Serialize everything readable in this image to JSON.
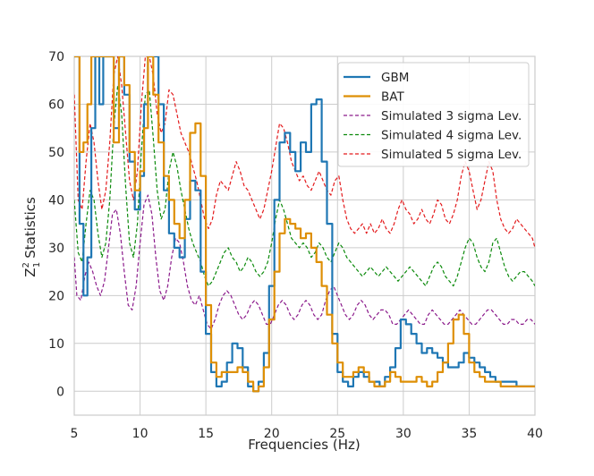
{
  "chart_data": {
    "type": "line",
    "title": "",
    "xlabel": "Frequencies (Hz)",
    "ylabel": "Statistics",
    "ylabel_symbol": "Z",
    "ylabel_sup": "2",
    "ylabel_sub": "1",
    "xlim": [
      5,
      40
    ],
    "ylim": [
      -5,
      70
    ],
    "xticks": [
      5,
      10,
      15,
      20,
      25,
      30,
      35,
      40
    ],
    "yticks": [
      0,
      10,
      20,
      30,
      40,
      50,
      60,
      70
    ],
    "grid": true,
    "legend_position": "top-right",
    "series": [
      {
        "name": "GBM",
        "color": "#1f77b4",
        "style": "step",
        "width": 2.2,
        "x": [
          5.0,
          5.4,
          5.7,
          6.0,
          6.3,
          6.6,
          6.9,
          7.2,
          7.6,
          8.0,
          8.4,
          8.8,
          9.2,
          9.6,
          10.0,
          10.3,
          10.6,
          11.0,
          11.4,
          11.8,
          12.2,
          12.6,
          13.0,
          13.4,
          13.8,
          14.2,
          14.6,
          15.0,
          15.4,
          15.8,
          16.2,
          16.6,
          17.0,
          17.4,
          17.8,
          18.2,
          18.6,
          19.0,
          19.4,
          19.8,
          20.2,
          20.6,
          21.0,
          21.4,
          21.8,
          22.2,
          22.6,
          23.0,
          23.4,
          23.8,
          24.2,
          24.6,
          25.0,
          25.4,
          25.8,
          26.2,
          26.6,
          27.0,
          27.4,
          27.8,
          28.2,
          28.6,
          29.0,
          29.4,
          29.8,
          30.2,
          30.6,
          31.0,
          31.4,
          31.8,
          32.2,
          32.6,
          33.0,
          33.4,
          33.8,
          34.2,
          34.6,
          35.0,
          35.4,
          35.8,
          36.2,
          36.6,
          37.0,
          37.4,
          37.8,
          38.2,
          38.6,
          39.0,
          39.4,
          39.8,
          40.0
        ],
        "y": [
          70,
          35,
          20,
          28,
          55,
          70,
          60,
          70,
          70,
          55,
          70,
          62,
          48,
          38,
          45,
          60,
          70,
          70,
          60,
          42,
          33,
          30,
          28,
          36,
          44,
          42,
          25,
          12,
          4,
          1,
          2,
          6,
          10,
          9,
          5,
          1,
          0,
          2,
          8,
          22,
          40,
          52,
          54,
          50,
          46,
          52,
          50,
          60,
          61,
          48,
          35,
          12,
          4,
          2,
          1,
          3,
          4,
          3,
          2,
          2,
          1,
          3,
          5,
          9,
          15,
          14,
          12,
          10,
          8,
          9,
          8,
          7,
          6,
          5,
          5,
          6,
          8,
          7,
          6,
          5,
          4,
          3,
          2,
          2,
          2,
          2,
          1,
          1,
          1,
          1,
          1
        ]
      },
      {
        "name": "BAT",
        "color": "#de8f05",
        "style": "step",
        "width": 2.2,
        "x": [
          5.0,
          5.4,
          5.7,
          6.0,
          6.3,
          6.6,
          6.9,
          7.2,
          7.6,
          8.0,
          8.4,
          8.8,
          9.2,
          9.6,
          10.0,
          10.3,
          10.6,
          11.0,
          11.4,
          11.8,
          12.2,
          12.6,
          13.0,
          13.4,
          13.8,
          14.2,
          14.6,
          15.0,
          15.4,
          15.8,
          16.2,
          16.6,
          17.0,
          17.4,
          17.8,
          18.2,
          18.6,
          19.0,
          19.4,
          19.8,
          20.2,
          20.6,
          21.0,
          21.4,
          21.8,
          22.2,
          22.6,
          23.0,
          23.4,
          23.8,
          24.2,
          24.6,
          25.0,
          25.4,
          25.8,
          26.2,
          26.6,
          27.0,
          27.4,
          27.8,
          28.2,
          28.6,
          29.0,
          29.4,
          29.8,
          30.2,
          30.6,
          31.0,
          31.4,
          31.8,
          32.2,
          32.6,
          33.0,
          33.4,
          33.8,
          34.2,
          34.6,
          35.0,
          35.4,
          35.8,
          36.2,
          36.6,
          37.0,
          37.4,
          37.8,
          38.2,
          38.6,
          39.0,
          39.4,
          39.8,
          40.0
        ],
        "y": [
          70,
          50,
          52,
          60,
          70,
          70,
          70,
          70,
          70,
          52,
          70,
          64,
          50,
          42,
          46,
          55,
          70,
          62,
          52,
          45,
          40,
          35,
          32,
          40,
          54,
          56,
          45,
          18,
          6,
          3,
          4,
          4,
          4,
          5,
          4,
          2,
          0,
          1,
          5,
          15,
          25,
          33,
          36,
          35,
          34,
          32,
          33,
          30,
          27,
          22,
          16,
          10,
          6,
          3,
          3,
          4,
          5,
          4,
          2,
          1,
          1,
          2,
          4,
          3,
          2,
          2,
          2,
          3,
          2,
          1,
          2,
          4,
          6,
          10,
          15,
          16,
          12,
          6,
          4,
          3,
          2,
          2,
          2,
          1,
          1,
          1,
          1,
          1,
          1,
          1,
          1
        ]
      },
      {
        "name": "Simulated 3 sigma Lev.",
        "color": "#8b1a8b",
        "style": "dashed",
        "width": 1.2,
        "x": [
          5.0,
          5.2,
          5.5,
          5.8,
          6.1,
          6.4,
          6.7,
          7.0,
          7.3,
          7.6,
          7.9,
          8.2,
          8.5,
          8.8,
          9.1,
          9.4,
          9.7,
          10.0,
          10.3,
          10.6,
          10.9,
          11.2,
          11.5,
          11.8,
          12.1,
          12.4,
          12.7,
          13.0,
          13.3,
          13.6,
          13.9,
          14.2,
          14.5,
          14.8,
          15.1,
          15.4,
          15.7,
          16.0,
          16.3,
          16.6,
          16.9,
          17.2,
          17.5,
          17.8,
          18.1,
          18.4,
          18.7,
          19.0,
          19.3,
          19.6,
          19.9,
          20.2,
          20.5,
          20.8,
          21.1,
          21.4,
          21.7,
          22.0,
          22.3,
          22.6,
          22.9,
          23.2,
          23.5,
          23.8,
          24.1,
          24.4,
          24.7,
          25.0,
          25.3,
          25.6,
          25.9,
          26.2,
          26.5,
          26.8,
          27.1,
          27.4,
          27.7,
          28.0,
          28.3,
          28.6,
          28.9,
          29.2,
          29.5,
          29.8,
          30.1,
          30.4,
          30.7,
          31.0,
          31.3,
          31.6,
          31.9,
          32.2,
          32.5,
          32.8,
          33.1,
          33.4,
          33.7,
          34.0,
          34.3,
          34.6,
          34.9,
          35.2,
          35.5,
          35.8,
          36.1,
          36.4,
          36.7,
          37.0,
          37.3,
          37.6,
          37.9,
          38.2,
          38.5,
          38.8,
          39.1,
          39.4,
          39.7,
          40.0
        ],
        "y": [
          28,
          20,
          19,
          24,
          27,
          25,
          22,
          20,
          23,
          30,
          37,
          38,
          33,
          25,
          18,
          17,
          22,
          31,
          39,
          41,
          37,
          28,
          21,
          19,
          22,
          28,
          32,
          31,
          27,
          22,
          19,
          18,
          20,
          17,
          14,
          13,
          15,
          18,
          20,
          21,
          20,
          18,
          16,
          15,
          16,
          18,
          19,
          18,
          16,
          14,
          14,
          16,
          18,
          19,
          18,
          16,
          15,
          16,
          18,
          19,
          18,
          16,
          15,
          16,
          19,
          21,
          22,
          20,
          18,
          16,
          15,
          16,
          18,
          19,
          18,
          16,
          15,
          16,
          17,
          17,
          16,
          14,
          14,
          15,
          16,
          17,
          16,
          15,
          14,
          14,
          16,
          17,
          16,
          15,
          14,
          14,
          15,
          16,
          17,
          16,
          15,
          14,
          14,
          15,
          16,
          17,
          17,
          16,
          15,
          14,
          14,
          15,
          15,
          14,
          14,
          15,
          15,
          14
        ],
        "wiggle": 0
      },
      {
        "name": "Simulated 4 sigma Lev.",
        "color": "#0b8a0b",
        "style": "dashed",
        "width": 1.2,
        "x": [
          5.0,
          5.3,
          5.6,
          5.9,
          6.2,
          6.5,
          6.8,
          7.1,
          7.4,
          7.7,
          8.0,
          8.3,
          8.6,
          8.9,
          9.2,
          9.5,
          9.8,
          10.1,
          10.4,
          10.7,
          11.0,
          11.3,
          11.6,
          11.9,
          12.2,
          12.5,
          12.8,
          13.1,
          13.4,
          13.7,
          14.0,
          14.3,
          14.6,
          14.9,
          15.2,
          15.5,
          15.8,
          16.1,
          16.4,
          16.7,
          17.0,
          17.3,
          17.6,
          17.9,
          18.2,
          18.5,
          18.8,
          19.1,
          19.4,
          19.7,
          20.0,
          20.3,
          20.6,
          20.9,
          21.2,
          21.5,
          21.8,
          22.1,
          22.4,
          22.7,
          23.0,
          23.3,
          23.6,
          23.9,
          24.2,
          24.5,
          24.8,
          25.1,
          25.4,
          25.7,
          26.0,
          26.3,
          26.6,
          26.9,
          27.2,
          27.5,
          27.8,
          28.1,
          28.4,
          28.7,
          29.0,
          29.3,
          29.6,
          29.9,
          30.2,
          30.5,
          30.8,
          31.1,
          31.4,
          31.7,
          32.0,
          32.3,
          32.6,
          32.9,
          33.2,
          33.5,
          33.8,
          34.1,
          34.4,
          34.7,
          35.0,
          35.3,
          35.6,
          35.9,
          36.2,
          36.5,
          36.8,
          37.1,
          37.4,
          37.7,
          38.0,
          38.3,
          38.6,
          38.9,
          39.2,
          39.5,
          39.8,
          40.0
        ],
        "y": [
          40,
          29,
          27,
          35,
          42,
          40,
          33,
          28,
          31,
          40,
          55,
          64,
          58,
          43,
          31,
          28,
          35,
          50,
          62,
          63,
          53,
          42,
          36,
          38,
          46,
          50,
          47,
          42,
          38,
          34,
          31,
          29,
          27,
          24,
          22,
          23,
          25,
          27,
          29,
          30,
          28,
          27,
          25,
          26,
          28,
          27,
          25,
          24,
          25,
          27,
          31,
          36,
          40,
          38,
          35,
          32,
          31,
          30,
          31,
          30,
          28,
          29,
          31,
          30,
          28,
          27,
          29,
          31,
          30,
          28,
          27,
          26,
          25,
          24,
          25,
          26,
          25,
          24,
          25,
          26,
          25,
          24,
          23,
          24,
          25,
          26,
          25,
          24,
          23,
          22,
          24,
          26,
          27,
          26,
          24,
          23,
          22,
          24,
          27,
          30,
          32,
          31,
          28,
          26,
          25,
          27,
          31,
          32,
          29,
          26,
          24,
          23,
          24,
          25,
          25,
          24,
          23,
          22
        ],
        "wiggle": 0
      },
      {
        "name": "Simulated 5 sigma Lev.",
        "color": "#e31a1c",
        "style": "dashed",
        "width": 1.2,
        "x": [
          5.0,
          5.3,
          5.6,
          5.9,
          6.2,
          6.5,
          6.8,
          7.1,
          7.4,
          7.7,
          8.0,
          8.3,
          8.6,
          8.9,
          9.2,
          9.5,
          9.8,
          10.1,
          10.4,
          10.7,
          11.0,
          11.3,
          11.6,
          11.9,
          12.2,
          12.5,
          12.8,
          13.1,
          13.4,
          13.7,
          14.0,
          14.3,
          14.6,
          14.9,
          15.2,
          15.5,
          15.8,
          16.1,
          16.4,
          16.7,
          17.0,
          17.3,
          17.6,
          17.9,
          18.2,
          18.5,
          18.8,
          19.1,
          19.4,
          19.7,
          20.0,
          20.3,
          20.6,
          20.9,
          21.2,
          21.5,
          21.8,
          22.1,
          22.4,
          22.7,
          23.0,
          23.3,
          23.6,
          23.9,
          24.2,
          24.5,
          24.8,
          25.1,
          25.4,
          25.7,
          26.0,
          26.3,
          26.6,
          26.9,
          27.2,
          27.5,
          27.8,
          28.1,
          28.4,
          28.7,
          29.0,
          29.3,
          29.6,
          29.9,
          30.2,
          30.5,
          30.8,
          31.1,
          31.4,
          31.7,
          32.0,
          32.3,
          32.6,
          32.9,
          33.2,
          33.5,
          33.8,
          34.1,
          34.4,
          34.7,
          35.0,
          35.3,
          35.6,
          35.9,
          36.2,
          36.5,
          36.8,
          37.1,
          37.4,
          37.7,
          38.0,
          38.3,
          38.6,
          38.9,
          39.2,
          39.5,
          39.8,
          40.0
        ],
        "y": [
          62,
          40,
          38,
          48,
          56,
          52,
          44,
          38,
          42,
          52,
          66,
          70,
          64,
          54,
          44,
          40,
          46,
          60,
          70,
          70,
          66,
          58,
          54,
          56,
          63,
          62,
          58,
          54,
          52,
          50,
          47,
          44,
          40,
          36,
          34,
          36,
          41,
          44,
          43,
          42,
          45,
          48,
          46,
          43,
          42,
          40,
          38,
          36,
          38,
          42,
          46,
          51,
          56,
          55,
          52,
          48,
          46,
          44,
          45,
          43,
          42,
          44,
          46,
          44,
          42,
          41,
          44,
          45,
          40,
          36,
          34,
          33,
          34,
          35,
          33,
          35,
          33,
          34,
          36,
          34,
          33,
          35,
          38,
          40,
          38,
          37,
          35,
          36,
          38,
          36,
          35,
          37,
          40,
          39,
          36,
          35,
          37,
          40,
          45,
          48,
          46,
          42,
          38,
          40,
          44,
          48,
          46,
          40,
          36,
          34,
          33,
          34,
          36,
          35,
          34,
          33,
          32,
          30
        ],
        "wiggle": 0
      }
    ]
  }
}
